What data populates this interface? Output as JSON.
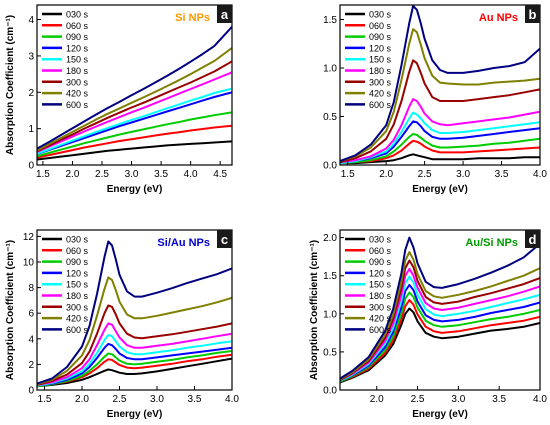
{
  "figure": {
    "series_names": [
      "030 s",
      "060 s",
      "090 s",
      "120 s",
      "150 s",
      "180 s",
      "300 s",
      "420 s",
      "600 s"
    ],
    "series_colors": [
      "#000000",
      "#ff0000",
      "#00cc00",
      "#0000ff",
      "#00ffff",
      "#ff00ff",
      "#990000",
      "#808000",
      "#000080"
    ]
  },
  "chart_data": [
    {
      "type": "line",
      "panel_letter": "a",
      "title": "Si NPs",
      "title_color": "#ff9900",
      "xlabel": "Energy (eV)",
      "ylabel": "Absorption Coefficient (cm⁻¹)",
      "xlim": [
        1.4,
        4.7
      ],
      "ylim": [
        0,
        4.4
      ],
      "xticks": [
        1.5,
        2.0,
        2.5,
        3.0,
        3.5,
        4.0,
        4.5
      ],
      "xtick_labels": [
        "1.5",
        "2.0",
        "2.5",
        "3.0",
        "3.5",
        "4.0",
        "4.5"
      ],
      "yticks": [
        0,
        1,
        2,
        3,
        4
      ],
      "ytick_labels": [
        "0",
        "1",
        "2",
        "3",
        "4"
      ],
      "legend_position": "top-left",
      "x": [
        1.4,
        1.6,
        1.8,
        2.0,
        2.2,
        2.4,
        2.6,
        2.8,
        3.0,
        3.2,
        3.4,
        3.6,
        3.8,
        4.0,
        4.2,
        4.4,
        4.7
      ],
      "series": [
        {
          "name": "030 s",
          "values": [
            0.15,
            0.19,
            0.23,
            0.27,
            0.31,
            0.35,
            0.39,
            0.42,
            0.45,
            0.48,
            0.51,
            0.54,
            0.56,
            0.58,
            0.6,
            0.62,
            0.65
          ]
        },
        {
          "name": "060 s",
          "values": [
            0.2,
            0.27,
            0.34,
            0.41,
            0.48,
            0.54,
            0.6,
            0.66,
            0.71,
            0.76,
            0.81,
            0.86,
            0.9,
            0.95,
            0.99,
            1.03,
            1.08
          ]
        },
        {
          "name": "090 s",
          "values": [
            0.24,
            0.33,
            0.42,
            0.51,
            0.6,
            0.68,
            0.76,
            0.84,
            0.91,
            0.98,
            1.05,
            1.12,
            1.18,
            1.25,
            1.31,
            1.37,
            1.45
          ]
        },
        {
          "name": "120 s",
          "values": [
            0.3,
            0.41,
            0.52,
            0.63,
            0.74,
            0.85,
            0.96,
            1.07,
            1.17,
            1.27,
            1.37,
            1.47,
            1.57,
            1.67,
            1.77,
            1.87,
            2.0
          ]
        },
        {
          "name": "150 s",
          "values": [
            0.31,
            0.43,
            0.55,
            0.67,
            0.79,
            0.91,
            1.02,
            1.13,
            1.24,
            1.34,
            1.45,
            1.56,
            1.66,
            1.77,
            1.87,
            1.98,
            2.1
          ]
        },
        {
          "name": "180 s",
          "values": [
            0.36,
            0.5,
            0.64,
            0.78,
            0.92,
            1.06,
            1.19,
            1.32,
            1.45,
            1.57,
            1.7,
            1.83,
            1.96,
            2.09,
            2.22,
            2.35,
            2.55
          ]
        },
        {
          "name": "300 s",
          "values": [
            0.38,
            0.53,
            0.69,
            0.84,
            1.0,
            1.15,
            1.3,
            1.44,
            1.58,
            1.71,
            1.85,
            1.99,
            2.13,
            2.27,
            2.42,
            2.57,
            2.85
          ]
        },
        {
          "name": "420 s",
          "values": [
            0.4,
            0.57,
            0.74,
            0.91,
            1.08,
            1.25,
            1.41,
            1.56,
            1.71,
            1.86,
            2.01,
            2.17,
            2.33,
            2.5,
            2.68,
            2.86,
            3.22
          ]
        },
        {
          "name": "600 s",
          "values": [
            0.45,
            0.63,
            0.82,
            1.01,
            1.2,
            1.39,
            1.57,
            1.74,
            1.92,
            2.09,
            2.27,
            2.45,
            2.64,
            2.84,
            3.05,
            3.27,
            3.8
          ]
        }
      ]
    },
    {
      "type": "line",
      "panel_letter": "b",
      "title": "Au NPs",
      "title_color": "#ff0000",
      "xlabel": "Energy (eV)",
      "ylabel": "",
      "xlim": [
        1.4,
        4.0
      ],
      "ylim": [
        0,
        1.65
      ],
      "xticks": [
        1.5,
        2.0,
        2.5,
        3.0,
        3.5,
        4.0
      ],
      "xtick_labels": [
        "1.5",
        "2.0",
        "2.5",
        "3.0",
        "3.5",
        "4.0"
      ],
      "yticks": [
        0,
        0.5,
        1.0,
        1.5
      ],
      "ytick_labels": [
        "0.0",
        "0.5",
        "1.0",
        "1.5"
      ],
      "legend_position": "top-left",
      "x": [
        1.4,
        1.6,
        1.8,
        2.0,
        2.1,
        2.2,
        2.3,
        2.35,
        2.4,
        2.45,
        2.5,
        2.6,
        2.7,
        2.8,
        3.0,
        3.2,
        3.4,
        3.6,
        3.8,
        4.0
      ],
      "series": [
        {
          "name": "030 s",
          "values": [
            0.02,
            0.02,
            0.03,
            0.04,
            0.05,
            0.07,
            0.1,
            0.11,
            0.1,
            0.09,
            0.08,
            0.06,
            0.06,
            0.06,
            0.06,
            0.07,
            0.07,
            0.07,
            0.08,
            0.08
          ]
        },
        {
          "name": "060 s",
          "values": [
            0.02,
            0.03,
            0.04,
            0.07,
            0.1,
            0.15,
            0.22,
            0.25,
            0.24,
            0.22,
            0.19,
            0.15,
            0.13,
            0.13,
            0.13,
            0.14,
            0.15,
            0.16,
            0.17,
            0.18
          ]
        },
        {
          "name": "090 s",
          "values": [
            0.02,
            0.03,
            0.05,
            0.09,
            0.14,
            0.21,
            0.29,
            0.32,
            0.31,
            0.28,
            0.25,
            0.2,
            0.18,
            0.18,
            0.19,
            0.2,
            0.22,
            0.23,
            0.25,
            0.27
          ]
        },
        {
          "name": "120 s",
          "values": [
            0.02,
            0.04,
            0.07,
            0.12,
            0.19,
            0.29,
            0.4,
            0.45,
            0.44,
            0.4,
            0.35,
            0.29,
            0.27,
            0.27,
            0.28,
            0.3,
            0.32,
            0.34,
            0.36,
            0.38
          ]
        },
        {
          "name": "150 s",
          "values": [
            0.02,
            0.04,
            0.08,
            0.14,
            0.22,
            0.34,
            0.48,
            0.54,
            0.52,
            0.48,
            0.43,
            0.36,
            0.33,
            0.33,
            0.34,
            0.36,
            0.38,
            0.4,
            0.42,
            0.44
          ]
        },
        {
          "name": "180 s",
          "values": [
            0.03,
            0.05,
            0.09,
            0.17,
            0.26,
            0.41,
            0.6,
            0.68,
            0.66,
            0.6,
            0.53,
            0.45,
            0.42,
            0.41,
            0.43,
            0.45,
            0.47,
            0.49,
            0.52,
            0.55
          ]
        },
        {
          "name": "300 s",
          "values": [
            0.03,
            0.07,
            0.14,
            0.27,
            0.42,
            0.66,
            0.96,
            1.08,
            1.05,
            0.95,
            0.84,
            0.7,
            0.66,
            0.66,
            0.66,
            0.68,
            0.7,
            0.72,
            0.75,
            0.78
          ]
        },
        {
          "name": "420 s",
          "values": [
            0.04,
            0.09,
            0.18,
            0.35,
            0.55,
            0.88,
            1.25,
            1.4,
            1.37,
            1.24,
            1.1,
            0.92,
            0.85,
            0.84,
            0.83,
            0.83,
            0.85,
            0.86,
            0.87,
            0.89
          ]
        },
        {
          "name": "600 s",
          "values": [
            0.04,
            0.1,
            0.21,
            0.41,
            0.65,
            1.03,
            1.46,
            1.64,
            1.6,
            1.46,
            1.3,
            1.08,
            0.98,
            0.95,
            0.95,
            0.97,
            1.0,
            1.02,
            1.06,
            1.2
          ]
        }
      ]
    },
    {
      "type": "line",
      "panel_letter": "c",
      "title": "Si/Au NPs",
      "title_color": "#0000cc",
      "xlabel": "Energy (eV)",
      "ylabel": "Absorption Coefficient (cm⁻¹)",
      "xlim": [
        1.4,
        4.0
      ],
      "ylim": [
        0,
        12.5
      ],
      "xticks": [
        1.5,
        2.0,
        2.5,
        3.0,
        3.5,
        4.0
      ],
      "xtick_labels": [
        "1.5",
        "2.0",
        "2.5",
        "3.0",
        "3.5",
        "4.0"
      ],
      "yticks": [
        0,
        2,
        4,
        6,
        8,
        10,
        12
      ],
      "ytick_labels": [
        "0",
        "2",
        "4",
        "6",
        "8",
        "10",
        "12"
      ],
      "legend_position": "top-left",
      "x": [
        1.4,
        1.6,
        1.8,
        2.0,
        2.1,
        2.2,
        2.3,
        2.35,
        2.4,
        2.45,
        2.5,
        2.6,
        2.7,
        2.8,
        3.0,
        3.2,
        3.4,
        3.6,
        3.8,
        4.0
      ],
      "series": [
        {
          "name": "030 s",
          "values": [
            0.3,
            0.4,
            0.55,
            0.8,
            1.0,
            1.25,
            1.5,
            1.6,
            1.55,
            1.45,
            1.35,
            1.25,
            1.25,
            1.3,
            1.45,
            1.65,
            1.85,
            2.05,
            2.25,
            2.45
          ]
        },
        {
          "name": "060 s",
          "values": [
            0.3,
            0.45,
            0.65,
            1.0,
            1.3,
            1.7,
            2.2,
            2.4,
            2.35,
            2.15,
            1.95,
            1.75,
            1.7,
            1.75,
            1.9,
            2.05,
            2.25,
            2.4,
            2.6,
            2.75
          ]
        },
        {
          "name": "090 s",
          "values": [
            0.3,
            0.45,
            0.7,
            1.1,
            1.5,
            2.0,
            2.6,
            2.85,
            2.8,
            2.55,
            2.3,
            2.05,
            2.0,
            2.05,
            2.2,
            2.35,
            2.55,
            2.7,
            2.9,
            3.05
          ]
        },
        {
          "name": "120 s",
          "values": [
            0.35,
            0.5,
            0.8,
            1.3,
            1.8,
            2.5,
            3.3,
            3.6,
            3.5,
            3.2,
            2.85,
            2.5,
            2.4,
            2.4,
            2.55,
            2.7,
            2.85,
            3.0,
            3.15,
            3.3
          ]
        },
        {
          "name": "150 s",
          "values": [
            0.35,
            0.55,
            0.9,
            1.45,
            2.05,
            2.9,
            3.9,
            4.3,
            4.2,
            3.8,
            3.4,
            2.95,
            2.8,
            2.8,
            2.95,
            3.1,
            3.3,
            3.45,
            3.65,
            3.8
          ]
        },
        {
          "name": "180 s",
          "values": [
            0.4,
            0.6,
            1.0,
            1.7,
            2.4,
            3.5,
            4.7,
            5.2,
            5.1,
            4.6,
            4.1,
            3.5,
            3.3,
            3.3,
            3.45,
            3.6,
            3.8,
            4.0,
            4.2,
            4.4
          ]
        },
        {
          "name": "300 s",
          "values": [
            0.4,
            0.7,
            1.2,
            2.1,
            3.0,
            4.4,
            6.0,
            6.6,
            6.5,
            5.9,
            5.2,
            4.4,
            4.1,
            4.05,
            4.2,
            4.35,
            4.55,
            4.75,
            4.95,
            5.2
          ]
        },
        {
          "name": "420 s",
          "values": [
            0.45,
            0.8,
            1.5,
            2.7,
            3.9,
            5.8,
            7.9,
            8.8,
            8.6,
            7.8,
            6.9,
            5.9,
            5.6,
            5.6,
            5.8,
            6.05,
            6.3,
            6.55,
            6.85,
            7.2
          ]
        },
        {
          "name": "600 s",
          "values": [
            0.5,
            0.9,
            1.8,
            3.4,
            5.0,
            7.5,
            10.4,
            11.6,
            11.3,
            10.2,
            9.0,
            7.7,
            7.3,
            7.3,
            7.6,
            7.95,
            8.35,
            8.7,
            9.05,
            9.5
          ]
        }
      ]
    },
    {
      "type": "line",
      "panel_letter": "d",
      "title": "Au/Si NPs",
      "title_color": "#009900",
      "xlabel": "Energy (eV)",
      "ylabel": "Absorption Coefficient (cm⁻¹)",
      "xlim": [
        1.55,
        4.0
      ],
      "ylim": [
        0,
        2.1
      ],
      "xticks": [
        2.0,
        2.5,
        3.0,
        3.5,
        4.0
      ],
      "xtick_labels": [
        "2.0",
        "2.5",
        "3.0",
        "3.5",
        "4.0"
      ],
      "yticks": [
        0,
        0.5,
        1.0,
        1.5,
        2.0
      ],
      "ytick_labels": [
        "0.0",
        "0.5",
        "1.0",
        "1.5",
        "2.0"
      ],
      "legend_position": "top-left",
      "x": [
        1.55,
        1.7,
        1.9,
        2.1,
        2.2,
        2.3,
        2.35,
        2.4,
        2.45,
        2.5,
        2.6,
        2.7,
        2.8,
        3.0,
        3.2,
        3.4,
        3.6,
        3.8,
        4.0
      ],
      "series": [
        {
          "name": "030 s",
          "values": [
            0.1,
            0.16,
            0.26,
            0.45,
            0.6,
            0.85,
            1.0,
            1.07,
            1.02,
            0.9,
            0.75,
            0.7,
            0.68,
            0.7,
            0.74,
            0.78,
            0.8,
            0.83,
            0.88
          ]
        },
        {
          "name": "060 s",
          "values": [
            0.11,
            0.17,
            0.28,
            0.48,
            0.65,
            0.92,
            1.1,
            1.18,
            1.12,
            0.99,
            0.83,
            0.77,
            0.75,
            0.77,
            0.81,
            0.85,
            0.88,
            0.91,
            0.96
          ]
        },
        {
          "name": "090 s",
          "values": [
            0.11,
            0.18,
            0.3,
            0.52,
            0.7,
            1.0,
            1.2,
            1.28,
            1.22,
            1.08,
            0.91,
            0.85,
            0.83,
            0.85,
            0.89,
            0.93,
            0.96,
            1.0,
            1.05
          ]
        },
        {
          "name": "120 s",
          "values": [
            0.12,
            0.19,
            0.32,
            0.56,
            0.76,
            1.08,
            1.3,
            1.38,
            1.31,
            1.16,
            0.98,
            0.92,
            0.9,
            0.92,
            0.96,
            1.01,
            1.05,
            1.09,
            1.15
          ]
        },
        {
          "name": "150 s",
          "values": [
            0.12,
            0.2,
            0.34,
            0.6,
            0.81,
            1.16,
            1.4,
            1.49,
            1.41,
            1.25,
            1.06,
            0.99,
            0.97,
            1.0,
            1.04,
            1.09,
            1.14,
            1.19,
            1.25
          ]
        },
        {
          "name": "180 s",
          "values": [
            0.13,
            0.21,
            0.36,
            0.64,
            0.87,
            1.24,
            1.5,
            1.59,
            1.5,
            1.34,
            1.14,
            1.07,
            1.05,
            1.08,
            1.13,
            1.18,
            1.23,
            1.29,
            1.36
          ]
        },
        {
          "name": "300 s",
          "values": [
            0.13,
            0.22,
            0.38,
            0.68,
            0.93,
            1.33,
            1.6,
            1.7,
            1.61,
            1.43,
            1.22,
            1.15,
            1.13,
            1.16,
            1.22,
            1.27,
            1.33,
            1.39,
            1.47
          ]
        },
        {
          "name": "420 s",
          "values": [
            0.14,
            0.23,
            0.4,
            0.72,
            0.98,
            1.41,
            1.7,
            1.81,
            1.71,
            1.52,
            1.3,
            1.23,
            1.21,
            1.25,
            1.3,
            1.36,
            1.43,
            1.5,
            1.6
          ]
        },
        {
          "name": "600 s",
          "values": [
            0.15,
            0.25,
            0.43,
            0.77,
            1.06,
            1.52,
            1.84,
            2.0,
            1.87,
            1.66,
            1.42,
            1.35,
            1.34,
            1.39,
            1.46,
            1.54,
            1.63,
            1.74,
            1.92
          ]
        }
      ]
    }
  ]
}
